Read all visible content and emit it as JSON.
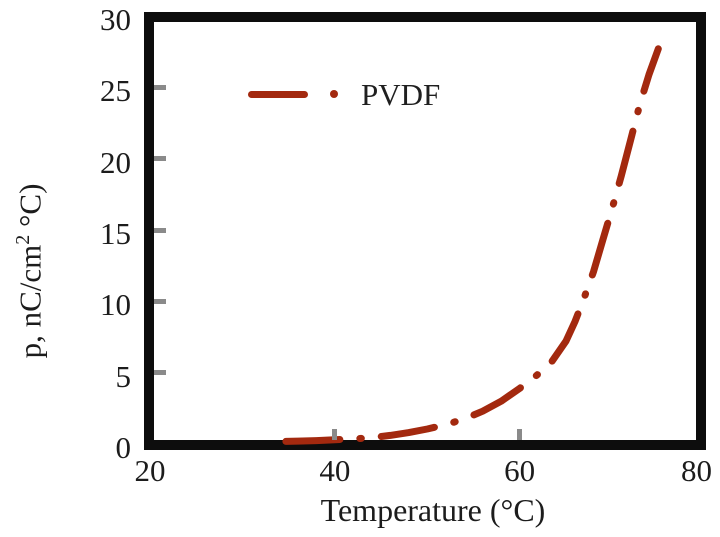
{
  "chart_data": {
    "type": "line",
    "title": "",
    "xlabel": "Temperature (°C)",
    "ylabel": "p, nC/cm2 °C)",
    "ylabel_parts": {
      "pre": "p, nC/cm",
      "sup": "2",
      "post": " °C)"
    },
    "xlim": [
      20,
      80
    ],
    "ylim": [
      0,
      30
    ],
    "x_ticks": [
      20,
      40,
      60,
      80
    ],
    "y_ticks": [
      0,
      5,
      10,
      15,
      20,
      25,
      30
    ],
    "grid": false,
    "legend": {
      "label": "PVDF",
      "position": "upper-left-inside"
    },
    "line_style": "dash-dot",
    "line_color": "#A3290F",
    "frame_color": "#0d0d0d",
    "tick_color": "#8a8a8a",
    "series": [
      {
        "name": "PVDF",
        "points": [
          [
            34.7,
            0.18
          ],
          [
            36,
            0.2
          ],
          [
            38,
            0.24
          ],
          [
            40,
            0.3
          ],
          [
            42,
            0.35
          ],
          [
            44,
            0.45
          ],
          [
            46,
            0.6
          ],
          [
            48,
            0.8
          ],
          [
            50,
            1.05
          ],
          [
            52,
            1.35
          ],
          [
            54,
            1.75
          ],
          [
            56,
            2.3
          ],
          [
            58,
            3.0
          ],
          [
            60,
            3.9
          ],
          [
            62,
            4.9
          ],
          [
            63.5,
            5.8
          ],
          [
            65,
            7.2
          ],
          [
            66,
            8.6
          ],
          [
            67,
            10.3
          ],
          [
            68,
            12.1
          ],
          [
            69,
            14.3
          ],
          [
            70,
            16.5
          ],
          [
            71,
            18.8
          ],
          [
            72,
            21.3
          ],
          [
            73,
            23.8
          ],
          [
            74,
            25.9
          ],
          [
            75,
            27.7
          ]
        ]
      }
    ]
  }
}
